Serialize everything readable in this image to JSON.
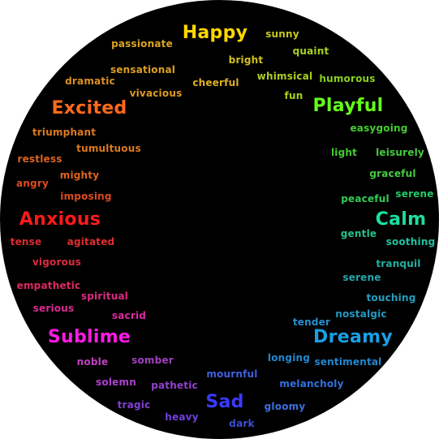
{
  "title": "",
  "words": [
    {
      "text": "Happy",
      "size": "major",
      "color": "#FFD700"
    },
    {
      "text": "passionate",
      "size": "minor",
      "color": "#DDA520"
    },
    {
      "text": "sunny",
      "size": "minor",
      "color": "#C8C820"
    },
    {
      "text": "quaint",
      "size": "minor",
      "color": "#A8D020"
    },
    {
      "text": "sensational",
      "size": "minor",
      "color": "#DDA020"
    },
    {
      "text": "bright",
      "size": "minor",
      "color": "#D2C020"
    },
    {
      "text": "dramatic",
      "size": "minor",
      "color": "#DD9020"
    },
    {
      "text": "whimsical",
      "size": "minor",
      "color": "#A8D020"
    },
    {
      "text": "humorous",
      "size": "minor",
      "color": "#88D020"
    },
    {
      "text": "cheerful",
      "size": "minor",
      "color": "#DDB020"
    },
    {
      "text": "vivacious",
      "size": "minor",
      "color": "#DD9A20"
    },
    {
      "text": "fun",
      "size": "minor",
      "color": "#A8D020"
    },
    {
      "text": "Excited",
      "size": "major",
      "color": "#FF6A1A"
    },
    {
      "text": "Playful",
      "size": "major",
      "color": "#66FF1A"
    },
    {
      "text": "triumphant",
      "size": "minor",
      "color": "#DD7A20"
    },
    {
      "text": "easygoing",
      "size": "minor",
      "color": "#44CC30"
    },
    {
      "text": "tumultuous",
      "size": "minor",
      "color": "#DD7A20"
    },
    {
      "text": "light",
      "size": "minor",
      "color": "#44CC30"
    },
    {
      "text": "leisurely",
      "size": "minor",
      "color": "#44CC40"
    },
    {
      "text": "restless",
      "size": "minor",
      "color": "#DD6420"
    },
    {
      "text": "mighty",
      "size": "minor",
      "color": "#DD6420"
    },
    {
      "text": "graceful",
      "size": "minor",
      "color": "#44CC40"
    },
    {
      "text": "angry",
      "size": "minor",
      "color": "#DD4A20"
    },
    {
      "text": "imposing",
      "size": "minor",
      "color": "#DD4A20"
    },
    {
      "text": "serene",
      "size": "minor",
      "color": "#22CC66"
    },
    {
      "text": "peaceful",
      "size": "minor",
      "color": "#33CC55"
    },
    {
      "text": "Anxious",
      "size": "major",
      "color": "#FF1A1A"
    },
    {
      "text": "Calm",
      "size": "major",
      "color": "#1AE0A0"
    },
    {
      "text": "gentle",
      "size": "minor",
      "color": "#22C088"
    },
    {
      "text": "soothing",
      "size": "minor",
      "color": "#22C0A0"
    },
    {
      "text": "tense",
      "size": "minor",
      "color": "#DD2A30"
    },
    {
      "text": "agitated",
      "size": "minor",
      "color": "#DD3030"
    },
    {
      "text": "vigorous",
      "size": "minor",
      "color": "#DD2A40"
    },
    {
      "text": "tranquil",
      "size": "minor",
      "color": "#22B0A0"
    },
    {
      "text": "serene",
      "size": "minor",
      "color": "#22A8B0"
    },
    {
      "text": "empathetic",
      "size": "minor",
      "color": "#DD2A60"
    },
    {
      "text": "spiritual",
      "size": "minor",
      "color": "#DD2A80"
    },
    {
      "text": "touching",
      "size": "minor",
      "color": "#22A0C0"
    },
    {
      "text": "serious",
      "size": "minor",
      "color": "#DD2A90"
    },
    {
      "text": "nostalgic",
      "size": "minor",
      "color": "#2298C0"
    },
    {
      "text": "sacrid",
      "size": "minor",
      "color": "#DD2AA0"
    },
    {
      "text": "tender",
      "size": "minor",
      "color": "#2290D0"
    },
    {
      "text": "Sublime",
      "size": "major",
      "color": "#FF1AE6"
    },
    {
      "text": "Dreamy",
      "size": "major",
      "color": "#1A9FE6"
    },
    {
      "text": "longing",
      "size": "minor",
      "color": "#2288D0"
    },
    {
      "text": "noble",
      "size": "minor",
      "color": "#C040C0"
    },
    {
      "text": "somber",
      "size": "minor",
      "color": "#A040C0"
    },
    {
      "text": "sentimental",
      "size": "minor",
      "color": "#2288D0"
    },
    {
      "text": "mournful",
      "size": "minor",
      "color": "#4060E0"
    },
    {
      "text": "solemn",
      "size": "minor",
      "color": "#B040D0"
    },
    {
      "text": "pathetic",
      "size": "minor",
      "color": "#9040D0"
    },
    {
      "text": "melancholy",
      "size": "minor",
      "color": "#3070E0"
    },
    {
      "text": "Sad",
      "size": "major",
      "color": "#3A3AFF"
    },
    {
      "text": "tragic",
      "size": "minor",
      "color": "#8040D0"
    },
    {
      "text": "gloomy",
      "size": "minor",
      "color": "#3A70E0"
    },
    {
      "text": "heavy",
      "size": "minor",
      "color": "#7040E0"
    },
    {
      "text": "dark",
      "size": "minor",
      "color": "#3A50D0"
    }
  ]
}
